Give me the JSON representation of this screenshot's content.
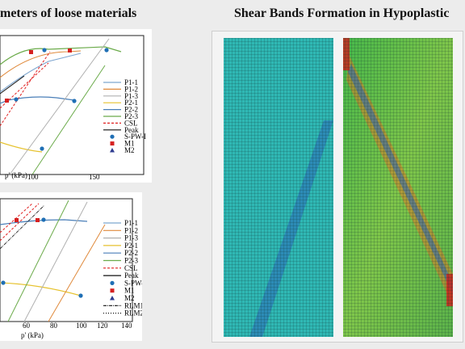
{
  "titles": {
    "left": "meters of loose materials",
    "right": "Shear Bands Formation in Hypoplastic"
  },
  "plot_top": {
    "xlabel": "p' (kPa)",
    "xticks": [
      "100",
      "150"
    ],
    "legend": [
      {
        "label": "P1-1",
        "color": "#7ea6cf",
        "style": "line"
      },
      {
        "label": "P1-2",
        "color": "#e08a3c",
        "style": "line"
      },
      {
        "label": "P1-3",
        "color": "#b0b0b0",
        "style": "line"
      },
      {
        "label": "P2-1",
        "color": "#e6c22e",
        "style": "line"
      },
      {
        "label": "P2-2",
        "color": "#4a7fb8",
        "style": "line"
      },
      {
        "label": "P2-3",
        "color": "#6bab4a",
        "style": "line"
      },
      {
        "label": "CSL",
        "color": "#e02020",
        "style": "dash"
      },
      {
        "label": "Peak",
        "color": "#111111",
        "style": "line"
      },
      {
        "label": "S-PW-I",
        "color": "#1f6fb5",
        "style": "circle"
      },
      {
        "label": "M1",
        "color": "#d62020",
        "style": "square"
      },
      {
        "label": "M2",
        "color": "#2d3b8f",
        "style": "triangle"
      }
    ]
  },
  "plot_bottom": {
    "xlabel": "p' (kPa)",
    "xticks": [
      "60",
      "80",
      "100",
      "120",
      "140"
    ],
    "legend": [
      {
        "label": "P1-1",
        "color": "#7ea6cf",
        "style": "line"
      },
      {
        "label": "P1-2",
        "color": "#e08a3c",
        "style": "line"
      },
      {
        "label": "P1-3",
        "color": "#b0b0b0",
        "style": "line"
      },
      {
        "label": "P2-1",
        "color": "#e6c22e",
        "style": "line"
      },
      {
        "label": "P2-2",
        "color": "#4a7fb8",
        "style": "line"
      },
      {
        "label": "P2-3",
        "color": "#6bab4a",
        "style": "line"
      },
      {
        "label": "CSL",
        "color": "#e02020",
        "style": "dash"
      },
      {
        "label": "Peak",
        "color": "#111111",
        "style": "line"
      },
      {
        "label": "S-PW-I",
        "color": "#1f6fb5",
        "style": "circle"
      },
      {
        "label": "M1",
        "color": "#d62020",
        "style": "square"
      },
      {
        "label": "M2",
        "color": "#2d3b8f",
        "style": "triangle"
      },
      {
        "label": "RLM1",
        "color": "#111111",
        "style": "dashdot"
      },
      {
        "label": "RLM2",
        "color": "#111111",
        "style": "dot"
      }
    ]
  },
  "colors": {
    "mesh_cyan": "#2fb8b4",
    "mesh_green": "#47b84a",
    "band_blue": "#2a66b8",
    "band_orange": "#d9772a",
    "band_red": "#c8261e",
    "mesh_line": "#0f2f2f"
  }
}
